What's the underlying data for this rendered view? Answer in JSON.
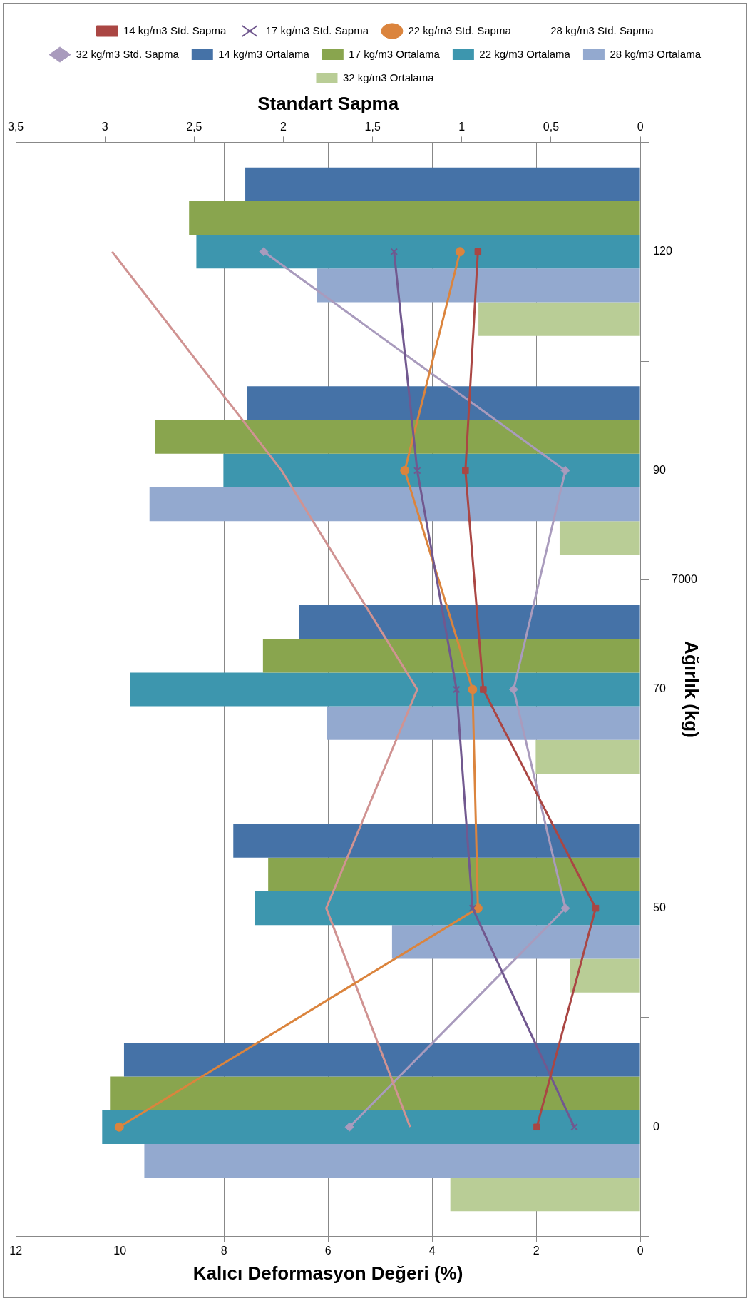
{
  "chart_data": {
    "type": "bar",
    "orientation": "horizontal",
    "xlabel": "Kalıcı Deformasyon Değeri (%)",
    "ylabel": "Ağırlık (kg)",
    "x2label": "Standart Sapma",
    "annotations": [
      "7000"
    ],
    "categories": [
      "120",
      "90",
      "70",
      "50",
      "0"
    ],
    "xlim": [
      12,
      0
    ],
    "xticks": [
      12,
      10,
      8,
      6,
      4,
      2,
      0
    ],
    "x2lim": [
      3.5,
      0
    ],
    "x2ticks": [
      {
        "value": 3.5,
        "label": "3,5"
      },
      3,
      {
        "value": 2.5,
        "label": "2,5"
      },
      2,
      {
        "value": 1.5,
        "label": "1,5"
      },
      1,
      {
        "value": 0.5,
        "label": "0,5"
      },
      0
    ],
    "grid": "x",
    "legend": "top",
    "series": [
      {
        "name": "14 kg/m3 Ortalama",
        "color": "#4572a7",
        "values": [
          7.59,
          7.55,
          6.56,
          7.82,
          9.92
        ]
      },
      {
        "name": "17 kg/m3 Ortalama",
        "color": "#89a54e",
        "values": [
          8.67,
          9.33,
          7.25,
          7.15,
          10.19
        ]
      },
      {
        "name": "22 kg/m3 Ortalama",
        "color": "#3d96ae",
        "values": [
          8.53,
          8.01,
          9.8,
          7.4,
          10.34
        ]
      },
      {
        "name": "28 kg/m3 Ortalama",
        "color": "#93a9cf",
        "values": [
          6.22,
          9.43,
          6.02,
          4.77,
          9.53
        ]
      },
      {
        "name": "32 kg/m3 Ortalama",
        "color": "#b9cd96",
        "values": [
          3.11,
          1.55,
          2.01,
          1.35,
          3.65
        ]
      },
      {
        "name": "14 kg/m3 Std. Sapma",
        "type": "line",
        "axis": "x2",
        "marker": "square",
        "color": "#aa4643",
        "values": [
          0.91,
          0.98,
          0.88,
          0.25,
          0.58
        ]
      },
      {
        "name": "17 kg/m3 Std. Sapma",
        "type": "line",
        "axis": "x2",
        "marker": "cross",
        "color": "#71588f",
        "values": [
          1.38,
          1.25,
          1.03,
          0.94,
          0.37
        ]
      },
      {
        "name": "22 kg/m3 Std. Sapma",
        "type": "line",
        "axis": "x2",
        "marker": "circle",
        "color": "#db843d",
        "values": [
          1.01,
          1.32,
          0.94,
          0.91,
          2.92
        ]
      },
      {
        "name": "28 kg/m3 Std. Sapma",
        "type": "line",
        "axis": "x2",
        "marker": "none",
        "color": "#d09392",
        "values": [
          2.96,
          2.01,
          1.25,
          1.76,
          1.29
        ]
      },
      {
        "name": "32 kg/m3 Std. Sapma",
        "type": "line",
        "axis": "x2",
        "marker": "diamond",
        "color": "#a99bbd",
        "values": [
          2.11,
          0.42,
          0.71,
          0.42,
          1.63
        ]
      }
    ]
  }
}
